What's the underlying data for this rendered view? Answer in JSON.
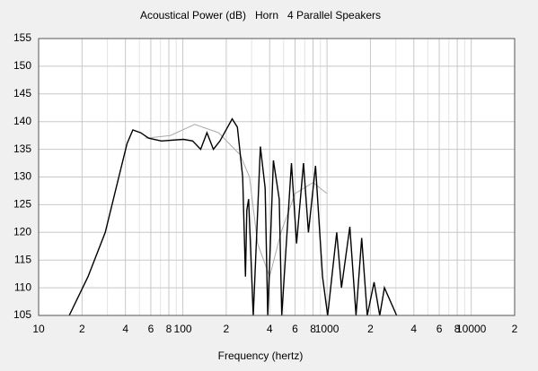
{
  "chart_data": {
    "type": "line",
    "title": "Acoustical Power (dB)   Horn   4 Parallel Speakers",
    "x_label": "Frequency (hertz)",
    "x_scale": "log",
    "xlim": [
      10,
      20000
    ],
    "ylim": [
      105,
      155
    ],
    "yticks": [
      105,
      110,
      115,
      120,
      125,
      130,
      135,
      140,
      145,
      150,
      155
    ],
    "xticks": [
      10,
      {
        "value": 20,
        "label": "2"
      },
      {
        "value": 40,
        "label": "4"
      },
      {
        "value": 60,
        "label": "6"
      },
      {
        "value": 80,
        "label": "8"
      },
      100,
      {
        "value": 200,
        "label": "2"
      },
      {
        "value": 400,
        "label": "4"
      },
      {
        "value": 600,
        "label": "6"
      },
      {
        "value": 800,
        "label": "8"
      },
      1000,
      {
        "value": 2000,
        "label": "2"
      },
      {
        "value": 4000,
        "label": "4"
      },
      {
        "value": 6000,
        "label": "6"
      },
      {
        "value": 8000,
        "label": "8"
      },
      10000,
      {
        "value": 20000,
        "label": "2"
      }
    ],
    "xticks_minor": [
      30,
      50,
      70,
      90,
      300,
      500,
      700,
      900,
      3000,
      5000,
      7000,
      9000
    ],
    "grid": true,
    "series": [
      {
        "color": "#aaaaaa",
        "x": [
          55,
          82,
          121,
          177,
          250,
          290,
          330,
          400,
          480,
          600,
          800,
          1000
        ],
        "values": [
          137,
          137.5,
          139.5,
          138,
          134,
          130,
          118,
          112,
          120,
          127,
          129,
          127
        ]
      },
      {
        "color": "#000000",
        "x": [
          16.3,
          22,
          29,
          36,
          41,
          45,
          51,
          58,
          71,
          101,
          117,
          133,
          147,
          163,
          181,
          220,
          239,
          260,
          272,
          278,
          286,
          308,
          345,
          372,
          388,
          425,
          466,
          485,
          567,
          615,
          687,
          743,
          832,
          930,
          1010,
          1167,
          1260,
          1439,
          1590,
          1740,
          1900,
          2120,
          2320,
          2500,
          3040
        ],
        "values": [
          105,
          112,
          120,
          130,
          136,
          138.5,
          138,
          137,
          136.5,
          136.8,
          136.5,
          135,
          138,
          135,
          136.5,
          140.5,
          139,
          130,
          112,
          124,
          126,
          105,
          135.5,
          128,
          105,
          133,
          126,
          105,
          132.5,
          118,
          132.5,
          120,
          132,
          112,
          105,
          120,
          110,
          121,
          105,
          119,
          105,
          111,
          105,
          110,
          105
        ]
      }
    ]
  }
}
